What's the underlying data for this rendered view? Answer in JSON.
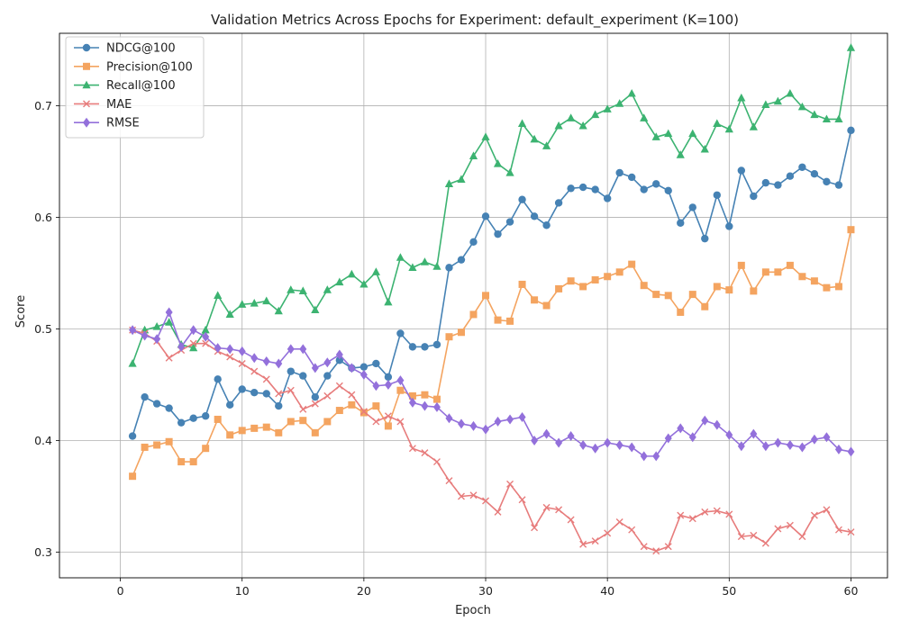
{
  "chart_data": {
    "type": "line",
    "title": "Validation Metrics Across Epochs for Experiment: default_experiment (K=100)",
    "xlabel": "Epoch",
    "ylabel": "Score",
    "xlim": [
      -5,
      63
    ],
    "ylim": [
      0.277,
      0.765
    ],
    "x_ticks": [
      0,
      10,
      20,
      30,
      40,
      50,
      60
    ],
    "y_ticks": [
      0.3,
      0.4,
      0.5,
      0.6,
      0.7
    ],
    "grid": true,
    "legend_position": "top-left",
    "x": [
      1,
      2,
      3,
      4,
      5,
      6,
      7,
      8,
      9,
      10,
      11,
      12,
      13,
      14,
      15,
      16,
      17,
      18,
      19,
      20,
      21,
      22,
      23,
      24,
      25,
      26,
      27,
      28,
      29,
      30,
      31,
      32,
      33,
      34,
      35,
      36,
      37,
      38,
      39,
      40,
      41,
      42,
      43,
      44,
      45,
      46,
      47,
      48,
      49,
      50,
      51,
      52,
      53,
      54,
      55,
      56,
      57,
      58,
      59,
      60
    ],
    "series": [
      {
        "name": "NDCG@100",
        "color": "#4682b4",
        "marker": "circle",
        "values": [
          0.404,
          0.439,
          0.433,
          0.429,
          0.416,
          0.42,
          0.422,
          0.455,
          0.432,
          0.446,
          0.443,
          0.442,
          0.431,
          0.462,
          0.458,
          0.439,
          0.458,
          0.472,
          0.465,
          0.466,
          0.469,
          0.457,
          0.496,
          0.484,
          0.484,
          0.486,
          0.555,
          0.562,
          0.578,
          0.601,
          0.585,
          0.596,
          0.616,
          0.601,
          0.593,
          0.613,
          0.626,
          0.627,
          0.625,
          0.617,
          0.64,
          0.636,
          0.625,
          0.63,
          0.624,
          0.595,
          0.609,
          0.581,
          0.62,
          0.592,
          0.642,
          0.619,
          0.631,
          0.629,
          0.637,
          0.645,
          0.639,
          0.632,
          0.629,
          0.678
        ]
      },
      {
        "name": "Precision@100",
        "color": "#f4a460",
        "marker": "square",
        "values": [
          0.368,
          0.394,
          0.396,
          0.399,
          0.381,
          0.381,
          0.393,
          0.419,
          0.405,
          0.409,
          0.411,
          0.412,
          0.407,
          0.417,
          0.418,
          0.407,
          0.417,
          0.427,
          0.432,
          0.425,
          0.431,
          0.413,
          0.445,
          0.44,
          0.441,
          0.437,
          0.493,
          0.497,
          0.513,
          0.53,
          0.508,
          0.507,
          0.54,
          0.526,
          0.521,
          0.536,
          0.543,
          0.538,
          0.544,
          0.547,
          0.551,
          0.558,
          0.539,
          0.531,
          0.53,
          0.515,
          0.531,
          0.52,
          0.538,
          0.535,
          0.557,
          0.534,
          0.551,
          0.551,
          0.557,
          0.547,
          0.543,
          0.537,
          0.538,
          0.589
        ]
      },
      {
        "name": "Recall@100",
        "color": "#3cb371",
        "marker": "triangle",
        "values": [
          0.469,
          0.499,
          0.502,
          0.506,
          0.486,
          0.483,
          0.499,
          0.53,
          0.513,
          0.522,
          0.523,
          0.525,
          0.516,
          0.535,
          0.534,
          0.517,
          0.535,
          0.542,
          0.549,
          0.54,
          0.551,
          0.524,
          0.564,
          0.555,
          0.56,
          0.556,
          0.63,
          0.634,
          0.655,
          0.672,
          0.648,
          0.64,
          0.684,
          0.67,
          0.664,
          0.682,
          0.689,
          0.682,
          0.692,
          0.697,
          0.702,
          0.711,
          0.689,
          0.672,
          0.675,
          0.656,
          0.675,
          0.661,
          0.684,
          0.679,
          0.707,
          0.681,
          0.701,
          0.704,
          0.711,
          0.699,
          0.692,
          0.688,
          0.688,
          0.752
        ]
      },
      {
        "name": "MAE",
        "color": "#e77c7c",
        "marker": "x",
        "values": [
          0.499,
          0.496,
          0.489,
          0.474,
          0.481,
          0.487,
          0.487,
          0.48,
          0.475,
          0.469,
          0.462,
          0.455,
          0.442,
          0.445,
          0.428,
          0.433,
          0.44,
          0.449,
          0.441,
          0.426,
          0.417,
          0.422,
          0.417,
          0.393,
          0.389,
          0.381,
          0.364,
          0.35,
          0.351,
          0.346,
          0.336,
          0.361,
          0.347,
          0.322,
          0.34,
          0.338,
          0.329,
          0.307,
          0.31,
          0.317,
          0.327,
          0.32,
          0.305,
          0.301,
          0.305,
          0.333,
          0.33,
          0.336,
          0.337,
          0.334,
          0.314,
          0.315,
          0.308,
          0.321,
          0.324,
          0.314,
          0.333,
          0.338,
          0.32,
          0.318
        ]
      },
      {
        "name": "RMSE",
        "color": "#9370db",
        "marker": "diamond",
        "values": [
          0.499,
          0.494,
          0.491,
          0.515,
          0.484,
          0.499,
          0.493,
          0.483,
          0.482,
          0.48,
          0.474,
          0.471,
          0.469,
          0.482,
          0.482,
          0.465,
          0.47,
          0.477,
          0.465,
          0.459,
          0.449,
          0.45,
          0.454,
          0.434,
          0.431,
          0.43,
          0.42,
          0.415,
          0.413,
          0.41,
          0.417,
          0.419,
          0.421,
          0.4,
          0.406,
          0.398,
          0.404,
          0.396,
          0.393,
          0.398,
          0.396,
          0.394,
          0.386,
          0.386,
          0.402,
          0.411,
          0.403,
          0.418,
          0.414,
          0.405,
          0.395,
          0.406,
          0.395,
          0.398,
          0.396,
          0.394,
          0.401,
          0.403,
          0.392,
          0.39
        ]
      }
    ]
  }
}
